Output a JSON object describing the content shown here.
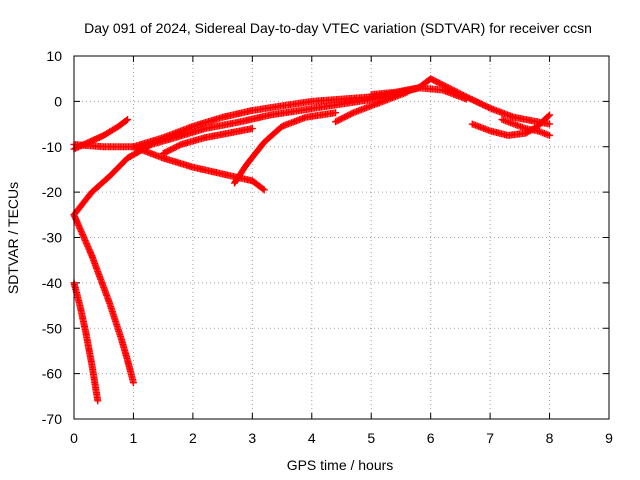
{
  "chart_data": {
    "type": "scatter",
    "title": "Day 091 of 2024, Sidereal Day-to-day VTEC variation (SDTVAR) for receiver ccsn",
    "xlabel": "GPS time / hours",
    "ylabel": "SDTVAR / TECUs",
    "xlim": [
      0,
      9
    ],
    "ylim": [
      -70,
      10
    ],
    "xticks": [
      "0",
      "1",
      "2",
      "3",
      "4",
      "5",
      "6",
      "7",
      "8",
      "9"
    ],
    "yticks": [
      "10",
      "0",
      "-10",
      "-20",
      "-30",
      "-40",
      "-50",
      "-60",
      "-70"
    ],
    "grid": true,
    "legend": "none",
    "marker": "plus",
    "color": "#ff0000",
    "series": [
      {
        "x": [
          0.0,
          0.25,
          0.5,
          0.75,
          0.9
        ],
        "y": [
          -10.5,
          -9.0,
          -7.5,
          -5.5,
          -4.0
        ]
      },
      {
        "x": [
          0.0,
          0.5,
          1.0,
          1.5,
          2.0,
          2.5,
          3.0,
          3.5,
          4.0,
          4.5,
          5.0,
          5.5,
          5.8
        ],
        "y": [
          -9.5,
          -10.0,
          -10.0,
          -8.0,
          -5.5,
          -3.5,
          -2.0,
          -1.0,
          0.0,
          0.5,
          1.0,
          2.0,
          3.0
        ]
      },
      {
        "x": [
          0.0,
          0.3,
          0.6,
          0.9,
          1.3,
          1.7,
          2.2,
          2.8,
          3.3,
          3.8,
          4.3,
          4.8,
          5.3,
          5.8,
          6.0,
          6.3,
          6.6,
          7.0,
          7.4,
          7.8,
          8.0
        ],
        "y": [
          -25.0,
          -20.0,
          -16.5,
          -12.5,
          -9.5,
          -8.0,
          -6.0,
          -4.5,
          -3.0,
          -2.0,
          -1.0,
          0.0,
          1.0,
          3.0,
          5.0,
          3.0,
          1.0,
          -1.5,
          -3.5,
          -4.5,
          -5.0
        ]
      },
      {
        "x": [
          1.0,
          1.5,
          2.0,
          2.5,
          3.0,
          3.2
        ],
        "y": [
          -10.0,
          -12.5,
          -14.5,
          -16.0,
          -17.5,
          -19.5
        ]
      },
      {
        "x": [
          2.7,
          2.9,
          3.2,
          3.5,
          3.9,
          4.4
        ],
        "y": [
          -18.0,
          -14.0,
          -9.0,
          -5.5,
          -3.5,
          -2.5
        ]
      },
      {
        "x": [
          1.5,
          1.8,
          2.2,
          2.6,
          3.0
        ],
        "y": [
          -11.5,
          -9.5,
          -8.0,
          -7.0,
          -6.0
        ]
      },
      {
        "x": [
          4.4,
          4.7,
          5.0,
          5.3,
          5.6
        ],
        "y": [
          -4.5,
          -2.5,
          -1.0,
          0.5,
          2.0
        ]
      },
      {
        "x": [
          5.0,
          5.4,
          5.8,
          6.2,
          6.6
        ],
        "y": [
          1.5,
          2.0,
          3.0,
          2.5,
          0.5
        ]
      },
      {
        "x": [
          6.7,
          7.0,
          7.3,
          7.6,
          7.8,
          8.0
        ],
        "y": [
          -5.0,
          -6.5,
          -7.5,
          -7.0,
          -5.5,
          -3.0
        ]
      },
      {
        "x": [
          7.2,
          7.4,
          7.6,
          7.8,
          8.0
        ],
        "y": [
          -4.0,
          -5.0,
          -6.0,
          -6.5,
          -7.5
        ]
      },
      {
        "x": [
          0.0,
          0.1,
          0.2,
          0.3,
          0.4,
          0.5,
          0.6,
          0.7,
          0.8,
          0.9,
          1.0
        ],
        "y": [
          -25.0,
          -28.0,
          -31.0,
          -34.0,
          -37.5,
          -41.0,
          -44.5,
          -48.5,
          -52.5,
          -57.0,
          -62.0
        ]
      },
      {
        "x": [
          0.0,
          0.1,
          0.2,
          0.3,
          0.4
        ],
        "y": [
          -40.0,
          -45.0,
          -51.0,
          -58.0,
          -66.0
        ]
      }
    ]
  }
}
